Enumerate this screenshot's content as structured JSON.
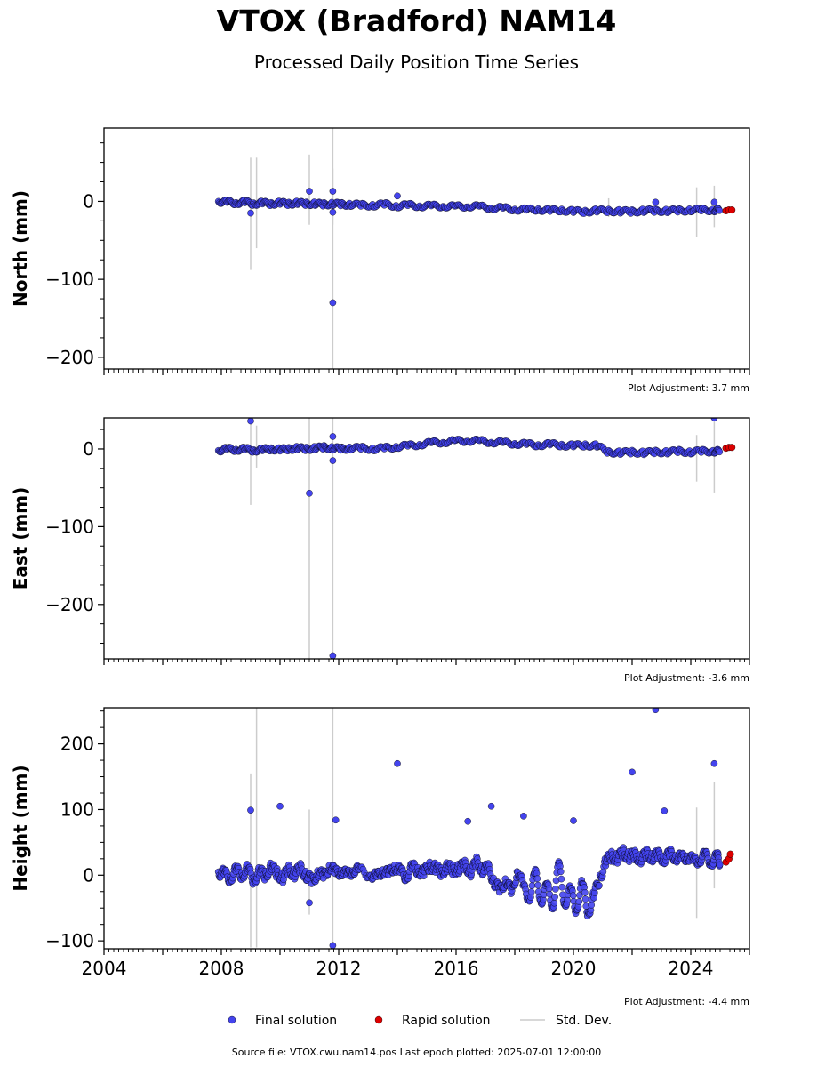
{
  "header": {
    "title": "VTOX (Bradford) NAM14",
    "subtitle": "Processed Daily Position Time Series"
  },
  "footer": {
    "source": "Source file: VTOX.cwu.nam14.pos  Last epoch plotted: 2025-07-01 12:00:00"
  },
  "chart_data": [
    {
      "type": "scatter",
      "ylabel": "North (mm)",
      "adjustment": "Plot Adjustment: 3.7 mm",
      "xlim": [
        2004.0,
        2026.0
      ],
      "ylim": [
        -215,
        94
      ],
      "yticks": [
        0,
        -100,
        -200
      ],
      "ytick_labels": [
        "0",
        "−100",
        "−200"
      ],
      "series": [
        {
          "name": "Final solution",
          "x": [
            2007.9,
            2008.2,
            2008.5,
            2008.8,
            2009.1,
            2009.4,
            2009.7,
            2010.0,
            2010.3,
            2010.6,
            2010.9,
            2011.2,
            2011.5,
            2011.8,
            2012.1,
            2012.4,
            2012.8,
            2013.2,
            2013.6,
            2014.0,
            2014.4,
            2014.8,
            2015.2,
            2015.6,
            2016.0,
            2016.4,
            2016.8,
            2017.2,
            2017.6,
            2018.0,
            2018.4,
            2018.8,
            2019.2,
            2019.6,
            2020.0,
            2020.4,
            2020.8,
            2021.2,
            2021.6,
            2022.0,
            2022.4,
            2022.8,
            2023.2,
            2023.6,
            2024.0,
            2024.4,
            2024.8,
            2025.0,
            2009.0,
            2011.0,
            2011.8,
            2011.8,
            2011.8,
            2014.0,
            2022.8,
            2024.8
          ],
          "y": [
            0,
            -1,
            -2,
            -1,
            -3,
            -2,
            -3,
            -2,
            -3,
            -2,
            -3,
            -3,
            -4,
            -3,
            -4,
            -4,
            -5,
            -5,
            -4,
            -6,
            -5,
            -6,
            -6,
            -6,
            -7,
            -6,
            -7,
            -8,
            -9,
            -10,
            -11,
            -10,
            -12,
            -11,
            -13,
            -13,
            -12,
            -12,
            -13,
            -13,
            -12,
            -12,
            -12,
            -12,
            -11,
            -11,
            -11,
            -11,
            -15,
            13,
            13,
            -14,
            -130,
            7,
            -1,
            -1
          ]
        },
        {
          "name": "Rapid solution",
          "x": [
            2025.2,
            2025.3,
            2025.4
          ],
          "y": [
            -12,
            -11,
            -11
          ]
        }
      ],
      "std_dev": {
        "name": "Std. Dev.",
        "x": [
          2009.0,
          2009.2,
          2011.0,
          2011.8,
          2011.8,
          2021.2,
          2024.2,
          2024.8
        ],
        "low": [
          -88,
          -60,
          -30,
          -215,
          -30,
          -20,
          -46,
          -33
        ],
        "high": [
          56,
          56,
          60,
          94,
          42,
          4,
          18,
          20
        ]
      }
    },
    {
      "type": "scatter",
      "ylabel": "East (mm)",
      "adjustment": "Plot Adjustment: -3.6 mm",
      "xlim": [
        2004.0,
        2026.0
      ],
      "ylim": [
        -270,
        40
      ],
      "yticks": [
        0,
        -100,
        -200
      ],
      "ytick_labels": [
        "0",
        "−100",
        "−200"
      ],
      "series": [
        {
          "name": "Final solution",
          "x": [
            2007.9,
            2008.2,
            2008.5,
            2008.8,
            2009.1,
            2009.4,
            2009.7,
            2010.0,
            2010.3,
            2010.6,
            2010.9,
            2011.2,
            2011.5,
            2011.8,
            2012.1,
            2012.4,
            2012.8,
            2013.2,
            2013.6,
            2014.0,
            2014.4,
            2014.8,
            2015.2,
            2015.6,
            2016.0,
            2016.4,
            2016.8,
            2017.2,
            2017.6,
            2018.0,
            2018.4,
            2018.8,
            2019.2,
            2019.6,
            2020.0,
            2020.4,
            2020.8,
            2021.2,
            2021.6,
            2022.0,
            2022.4,
            2022.8,
            2023.2,
            2023.6,
            2024.0,
            2024.4,
            2024.8,
            2025.0,
            2009.0,
            2011.0,
            2011.8,
            2011.8,
            2011.8,
            2024.8
          ],
          "y": [
            -2,
            0,
            -1,
            0,
            -2,
            -1,
            0,
            -1,
            0,
            1,
            0,
            1,
            2,
            1,
            0,
            1,
            1,
            0,
            1,
            3,
            4,
            6,
            8,
            9,
            10,
            11,
            10,
            9,
            8,
            7,
            6,
            5,
            6,
            5,
            4,
            5,
            4,
            -4,
            -5,
            -4,
            -5,
            -4,
            -4,
            -3,
            -4,
            -3,
            -3,
            -3,
            36,
            -57,
            16,
            -15,
            -266,
            40
          ]
        },
        {
          "name": "Rapid solution",
          "x": [
            2025.2,
            2025.3,
            2025.4
          ],
          "y": [
            1,
            2,
            2
          ]
        }
      ],
      "std_dev": {
        "name": "Std. Dev.",
        "x": [
          2009.0,
          2009.2,
          2011.0,
          2011.8,
          2024.2,
          2024.8
        ],
        "low": [
          -72,
          -24,
          -270,
          -270,
          -42,
          -56
        ],
        "high": [
          40,
          30,
          40,
          40,
          18,
          40
        ]
      }
    },
    {
      "type": "scatter",
      "ylabel": "Height (mm)",
      "adjustment": "Plot Adjustment: -4.4 mm",
      "xlim": [
        2004.0,
        2026.0
      ],
      "ylim": [
        -112,
        255
      ],
      "yticks": [
        200,
        100,
        0,
        -100
      ],
      "ytick_labels": [
        "200",
        "100",
        "0",
        "−100"
      ],
      "x_ticks": [
        "2004",
        "2008",
        "2012",
        "2016",
        "2020",
        "2024"
      ],
      "x_tick_values": [
        2004,
        2008,
        2012,
        2016,
        2020,
        2024
      ],
      "series": [
        {
          "name": "Final solution",
          "x": [
            2007.9,
            2008.1,
            2008.3,
            2008.5,
            2008.7,
            2008.9,
            2009.1,
            2009.3,
            2009.5,
            2009.7,
            2009.9,
            2010.1,
            2010.3,
            2010.5,
            2010.7,
            2010.9,
            2011.1,
            2011.3,
            2011.5,
            2011.7,
            2011.9,
            2012.1,
            2012.3,
            2012.5,
            2012.7,
            2013.1,
            2013.3,
            2013.5,
            2013.7,
            2013.9,
            2014.1,
            2014.3,
            2014.5,
            2014.7,
            2014.9,
            2015.1,
            2015.3,
            2015.5,
            2015.7,
            2015.9,
            2016.1,
            2016.3,
            2016.5,
            2016.7,
            2016.9,
            2017.1,
            2017.3,
            2017.5,
            2017.7,
            2017.9,
            2018.1,
            2018.3,
            2018.5,
            2018.7,
            2018.9,
            2019.1,
            2019.3,
            2019.5,
            2019.7,
            2019.9,
            2020.1,
            2020.3,
            2020.5,
            2020.7,
            2020.9,
            2021.1,
            2021.3,
            2021.5,
            2021.7,
            2021.9,
            2022.1,
            2022.3,
            2022.5,
            2022.7,
            2022.9,
            2023.1,
            2023.3,
            2023.5,
            2023.7,
            2023.9,
            2024.1,
            2024.3,
            2024.5,
            2024.7,
            2024.9,
            2025.0,
            2009.0,
            2010.0,
            2011.0,
            2011.9,
            2011.8,
            2014.0,
            2016.4,
            2017.2,
            2018.3,
            2020.0,
            2022.0,
            2022.8,
            2023.1,
            2024.8
          ],
          "y": [
            5,
            2,
            -5,
            8,
            0,
            10,
            -8,
            5,
            0,
            12,
            3,
            -4,
            8,
            2,
            10,
            0,
            -10,
            5,
            -3,
            15,
            2,
            8,
            -2,
            10,
            5,
            3,
            -5,
            10,
            0,
            15,
            5,
            -2,
            12,
            8,
            3,
            15,
            10,
            5,
            12,
            8,
            10,
            15,
            5,
            20,
            8,
            10,
            -10,
            -25,
            -5,
            -30,
            10,
            -20,
            -35,
            5,
            -40,
            -15,
            -50,
            20,
            -45,
            -20,
            -55,
            -10,
            -60,
            -30,
            -5,
            20,
            30,
            25,
            35,
            28,
            30,
            25,
            32,
            28,
            30,
            25,
            32,
            28,
            25,
            30,
            20,
            25,
            30,
            20,
            28,
            20,
            99,
            105,
            -42,
            84,
            -107,
            170,
            82,
            105,
            90,
            83,
            157,
            252,
            98,
            170
          ]
        },
        {
          "name": "Rapid solution",
          "x": [
            2025.2,
            2025.3,
            2025.35
          ],
          "y": [
            20,
            25,
            32
          ]
        }
      ],
      "std_dev": {
        "name": "Std. Dev.",
        "x": [
          2009.0,
          2009.2,
          2011.0,
          2011.8,
          2024.2,
          2024.8
        ],
        "low": [
          -110,
          -110,
          -60,
          -112,
          -65,
          -20
        ],
        "high": [
          155,
          255,
          100,
          255,
          103,
          142
        ]
      }
    }
  ],
  "legend": {
    "final": "Final solution",
    "rapid": "Rapid solution",
    "stddev": "Std. Dev.",
    "final_color": "#4444ee",
    "rapid_color": "#dd0000",
    "stddev_color": "#cccccc"
  }
}
